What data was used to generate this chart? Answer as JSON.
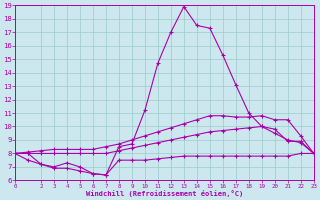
{
  "bg_color": "#cce8ee",
  "line_color": "#aa00aa",
  "grid_color": "#99cccc",
  "xlabel": "Windchill (Refroidissement éolien,°C)",
  "xlabel_color": "#aa00aa",
  "ylim": [
    6,
    19
  ],
  "xlim": [
    0,
    23
  ],
  "yticks": [
    6,
    7,
    8,
    9,
    10,
    11,
    12,
    13,
    14,
    15,
    16,
    17,
    18,
    19
  ],
  "xticks": [
    0,
    2,
    3,
    4,
    5,
    6,
    7,
    8,
    9,
    10,
    11,
    12,
    13,
    14,
    15,
    16,
    17,
    18,
    19,
    20,
    21,
    22,
    23
  ],
  "hours": [
    0,
    1,
    2,
    3,
    4,
    5,
    6,
    7,
    8,
    9,
    10,
    11,
    12,
    13,
    14,
    15,
    16,
    17,
    18,
    19,
    20,
    21,
    22,
    23
  ],
  "line_peak": [
    8.0,
    8.0,
    7.2,
    6.9,
    6.9,
    6.7,
    6.5,
    6.4,
    8.5,
    8.7,
    11.2,
    14.7,
    17.0,
    18.9,
    17.5,
    17.3,
    15.3,
    13.1,
    11.0,
    10.0,
    9.8,
    8.9,
    8.9,
    8.0
  ],
  "line_upper": [
    8.0,
    8.1,
    8.2,
    8.3,
    8.3,
    8.3,
    8.3,
    8.5,
    8.7,
    9.0,
    9.3,
    9.6,
    9.9,
    10.2,
    10.5,
    10.8,
    10.8,
    10.7,
    10.7,
    10.8,
    10.5,
    10.5,
    9.3,
    8.0
  ],
  "line_mid": [
    8.0,
    8.0,
    8.0,
    8.0,
    8.0,
    8.0,
    8.0,
    8.0,
    8.2,
    8.4,
    8.6,
    8.8,
    9.0,
    9.2,
    9.4,
    9.6,
    9.7,
    9.8,
    9.9,
    10.0,
    9.5,
    9.0,
    8.8,
    8.0
  ],
  "line_low": [
    8.0,
    7.5,
    7.2,
    7.0,
    7.3,
    7.0,
    6.5,
    6.4,
    7.5,
    7.5,
    7.5,
    7.6,
    7.7,
    7.8,
    7.8,
    7.8,
    7.8,
    7.8,
    7.8,
    7.8,
    7.8,
    7.8,
    8.0,
    8.0
  ]
}
